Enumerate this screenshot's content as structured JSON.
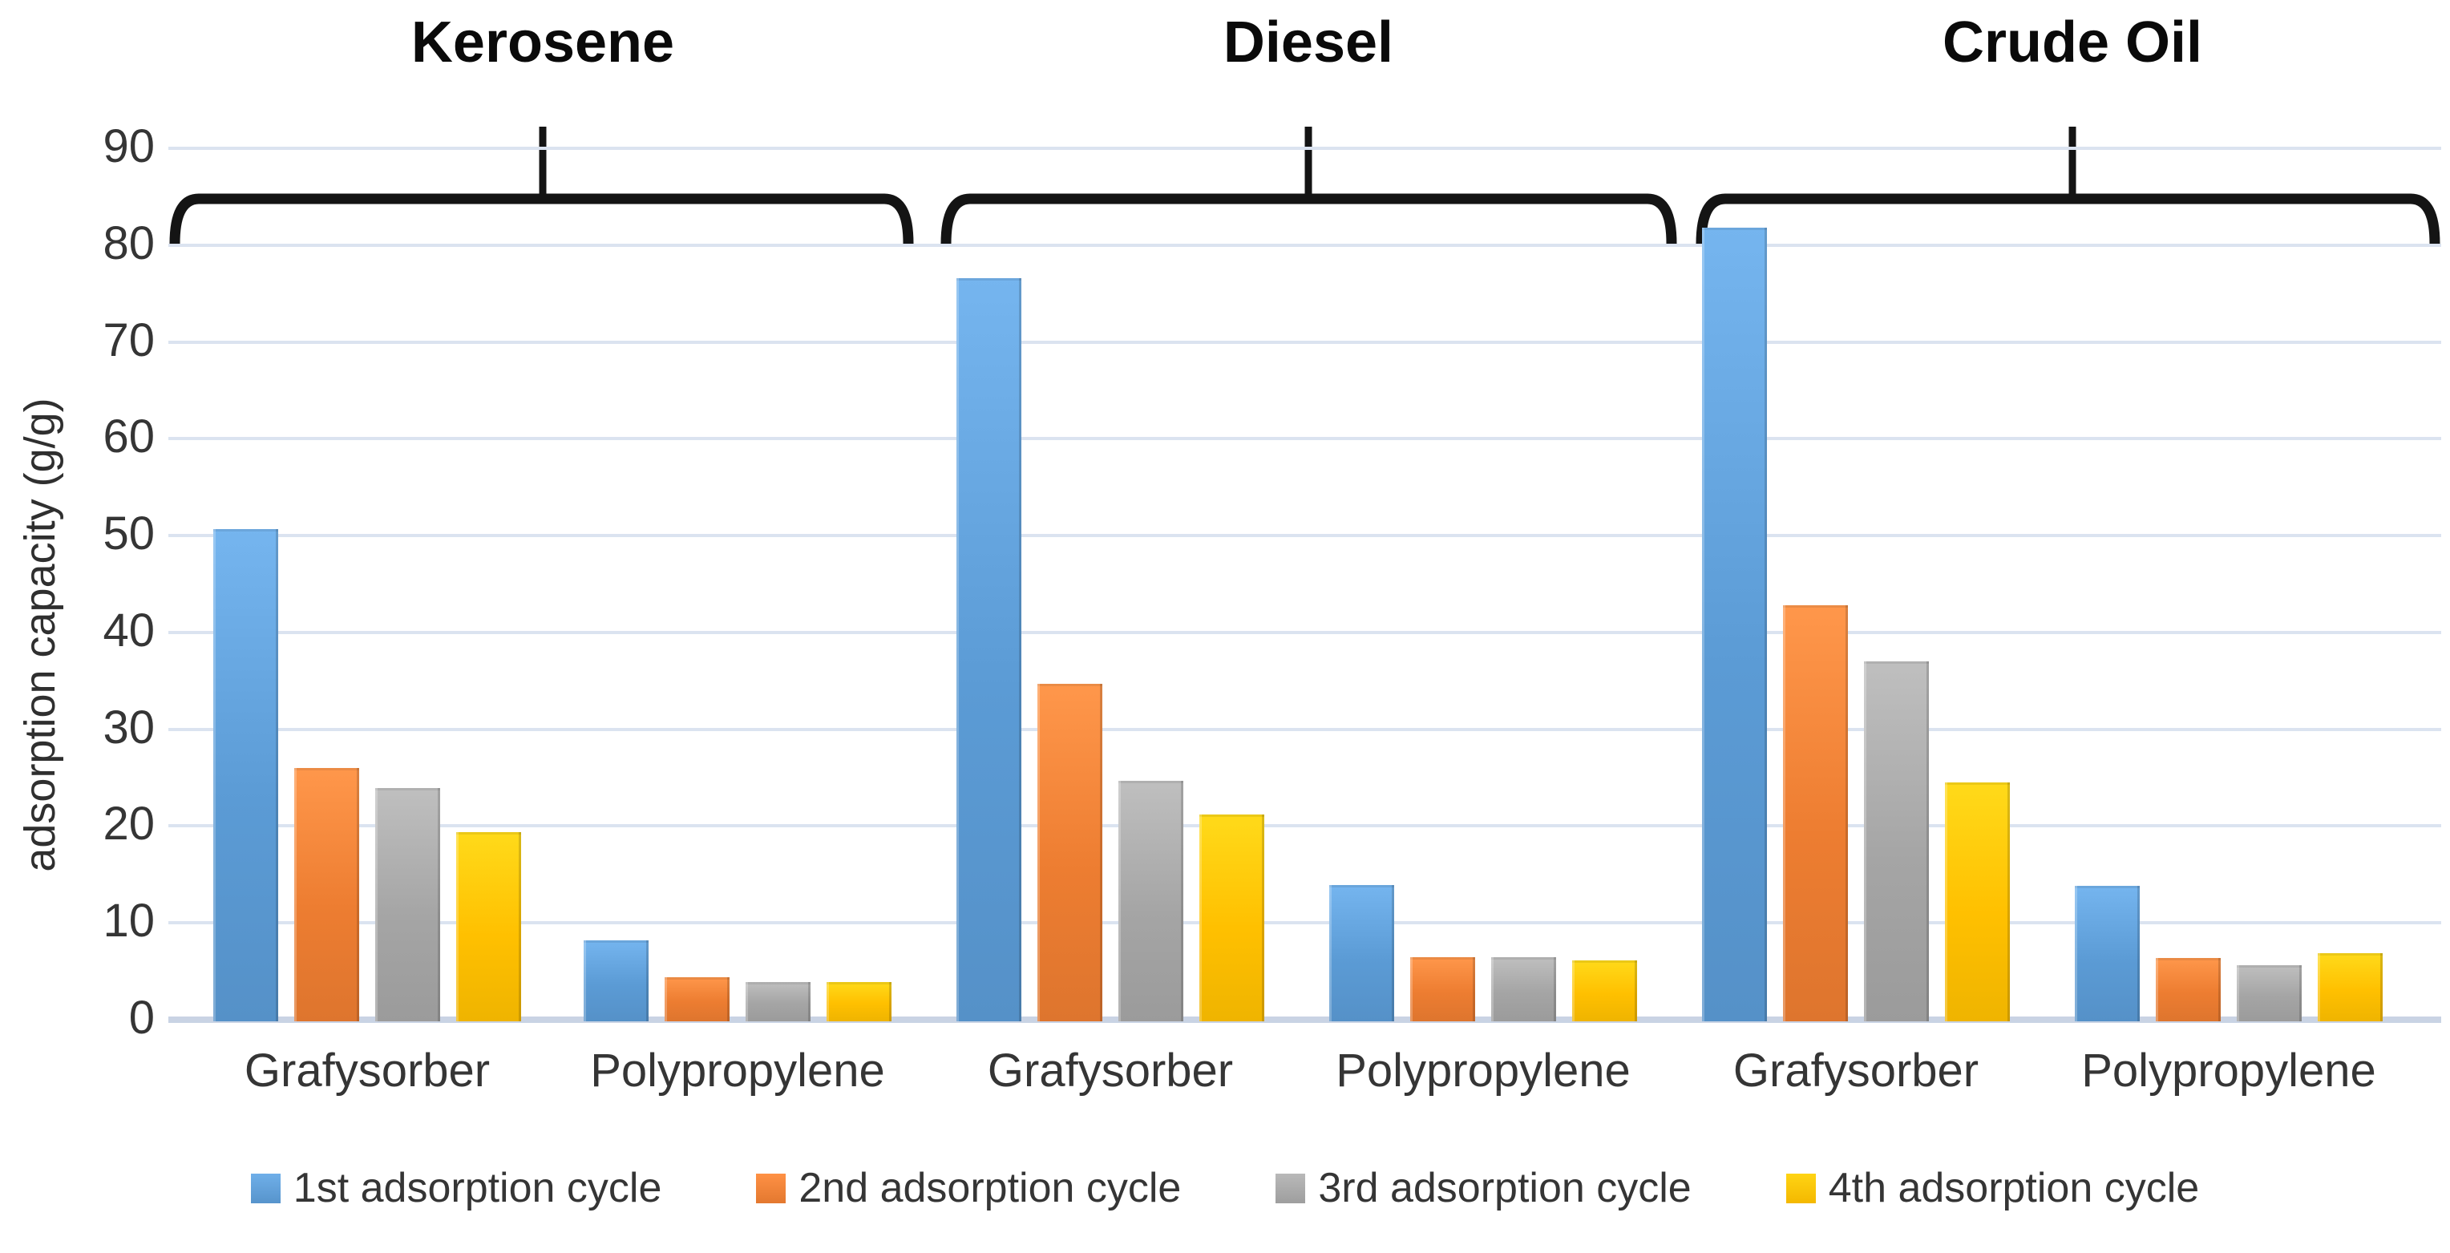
{
  "chart_data": {
    "type": "bar",
    "title": "",
    "section_titles": [
      "Kerosene",
      "Diesel",
      "Crude Oil"
    ],
    "ylabel": "adsorption capacity (g/g)",
    "ylim": [
      0,
      90
    ],
    "yticks": [
      0,
      10,
      20,
      30,
      40,
      50,
      60,
      70,
      80,
      90
    ],
    "grid": true,
    "legend_position": "bottom",
    "categories": [
      "Kerosene - Grafysorber",
      "Kerosene - Polypropylene",
      "Diesel - Grafysorber",
      "Diesel - Polypropylene",
      "Crude Oil - Grafysorber",
      "Crude Oil - Polypropylene"
    ],
    "category_labels": [
      "Grafysorber",
      "Polypropylene",
      "Grafysorber",
      "Polypropylene",
      "Grafysorber",
      "Polypropylene"
    ],
    "series": [
      {
        "name": "1st adsorption cycle",
        "color": "#5B9BD5",
        "values": [
          50.7,
          8.2,
          76.6,
          13.9,
          81.8,
          13.8
        ]
      },
      {
        "name": "2nd adsorption cycle",
        "color": "#ED7D31",
        "values": [
          26.0,
          4.4,
          34.7,
          6.5,
          42.8,
          6.4
        ]
      },
      {
        "name": "3rd adsorption cycle",
        "color": "#A5A5A5",
        "values": [
          23.9,
          3.9,
          24.7,
          6.5,
          37.0,
          5.6
        ]
      },
      {
        "name": "4th adsorption cycle",
        "color": "#FFC000",
        "values": [
          19.4,
          3.9,
          21.2,
          6.1,
          24.5,
          6.9
        ]
      }
    ]
  }
}
